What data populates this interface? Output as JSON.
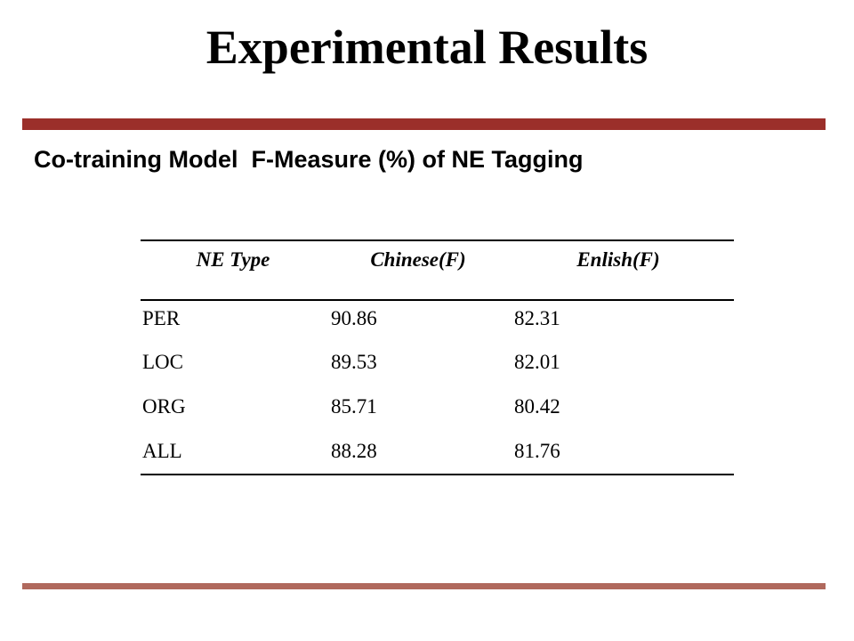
{
  "header": {
    "title": "Experimental Results"
  },
  "subtitle": "Co-training Model  F-Measure (%) of NE Tagging",
  "table": {
    "columns": [
      "NE Type",
      "Chinese(F)",
      "Enlish(F)"
    ],
    "rows": [
      [
        "PER",
        "90.86",
        "82.31"
      ],
      [
        "LOC",
        "89.53",
        "82.01"
      ],
      [
        "ORG",
        "85.71",
        "80.42"
      ],
      [
        "ALL",
        "88.28",
        "81.76"
      ]
    ]
  }
}
